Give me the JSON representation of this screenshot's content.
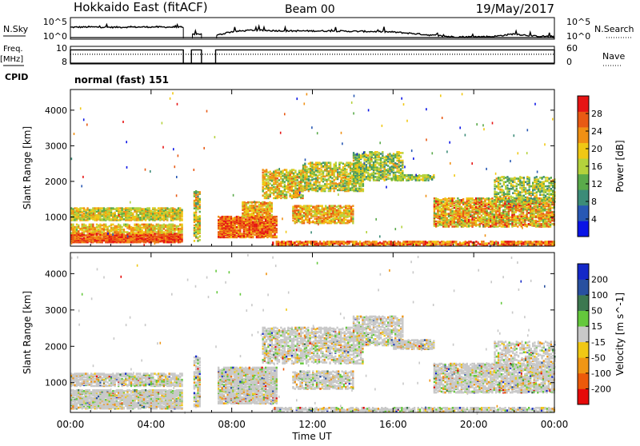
{
  "header": {
    "station": "Hokkaido East (fitACF)",
    "beam": "Beam 00",
    "date": "19/May/2017"
  },
  "side_labels": {
    "nsky": "N.Sky",
    "freq_line1": "Freq.",
    "freq_line2": "[MHz]",
    "cpid": "CPID",
    "nsearch": "N.Search",
    "nave": "Nave"
  },
  "cpid_text": "normal (fast) 151",
  "time_axis": {
    "label": "Time UT",
    "ticks": [
      "00:00",
      "04:00",
      "08:00",
      "12:00",
      "16:00",
      "20:00",
      "00:00"
    ]
  },
  "colors": {
    "power": [
      "#0a14e6",
      "#2858b4",
      "#3c8c78",
      "#5aaa4a",
      "#b4d23c",
      "#f0c814",
      "#f09014",
      "#e85a14",
      "#e61414"
    ],
    "velocity": [
      "#1428c8",
      "#2850a0",
      "#3c7850",
      "#64c83c",
      "#c8c8c8",
      "#f0c814",
      "#f09614",
      "#ec5a0a",
      "#e60a0a"
    ],
    "line": "#000000"
  },
  "chart_data": [
    {
      "type": "line",
      "title": "N.Sky / N.Search",
      "ylabel_left": "N.Sky",
      "ylabel_right": "N.Search",
      "y_ticks_left": [
        "10^5",
        "10^0"
      ],
      "y_ticks_right": [
        "10^5",
        "10^0"
      ],
      "x_hours_range": [
        0,
        24
      ],
      "data_gaps_hours": [
        [
          5.6,
          6.0
        ],
        [
          6.5,
          7.2
        ]
      ],
      "series": [
        {
          "kind": "nsky",
          "x_hours": [
            0.0,
            1.0,
            2.0,
            3.0,
            4.0,
            5.0,
            5.55,
            6.05,
            6.45,
            7.25,
            8.0,
            9.0,
            10.0,
            11.0,
            12.0,
            13.0,
            14.0,
            15.0,
            16.0,
            17.0,
            18.0,
            19.0,
            20.0,
            21.0,
            22.0,
            23.0,
            24.0
          ],
          "level": [
            0.56,
            0.58,
            0.56,
            0.57,
            0.58,
            0.57,
            0.56,
            0.18,
            0.2,
            0.12,
            0.32,
            0.4,
            0.38,
            0.36,
            0.36,
            0.36,
            0.34,
            0.33,
            0.3,
            0.22,
            0.12,
            0.04,
            0.04,
            0.06,
            0.2,
            0.08,
            0.06
          ]
        }
      ]
    },
    {
      "type": "line",
      "title": "Freq. / Nave",
      "ylabel_left": "Freq. [MHz]",
      "ylabel_right": "Nave",
      "y_ticks_left": [
        "10",
        "8"
      ],
      "y_ticks_right": [
        "60",
        "0"
      ],
      "x_hours_range": [
        0,
        24
      ],
      "data_gaps_hours": [
        [
          5.6,
          6.0
        ],
        [
          6.5,
          7.2
        ]
      ],
      "series": [
        {
          "name": "Freq.",
          "style": "solid",
          "level": 0.8
        },
        {
          "name": "Nave",
          "style": "dotted",
          "level": 0.55
        }
      ]
    },
    {
      "type": "heatmap",
      "panel": "power",
      "ylabel": "Slant Range [km]",
      "y_ticks": [
        1000,
        2000,
        3000,
        4000
      ],
      "ylim": [
        180,
        4580
      ],
      "colorbar_label": "Power [dB]",
      "colorbar_ticks": [
        4,
        8,
        12,
        16,
        20,
        24,
        28
      ],
      "colorbar_range": [
        0,
        32
      ],
      "regions": [
        {
          "t0": 0.0,
          "t1": 5.5,
          "r0": 260,
          "r1": 520,
          "v0": 22,
          "v1": 32,
          "d": 0.85
        },
        {
          "t0": 0.0,
          "t1": 5.5,
          "r0": 520,
          "r1": 780,
          "v0": 14,
          "v1": 26,
          "d": 0.6
        },
        {
          "t0": 0.0,
          "t1": 5.5,
          "r0": 880,
          "r1": 1240,
          "v0": 12,
          "v1": 24,
          "d": 0.7
        },
        {
          "t0": 6.1,
          "t1": 6.4,
          "r0": 300,
          "r1": 1700,
          "v0": 10,
          "v1": 26,
          "d": 0.55
        },
        {
          "t0": 7.3,
          "t1": 10.2,
          "r0": 400,
          "r1": 1000,
          "v0": 20,
          "v1": 32,
          "d": 0.8
        },
        {
          "t0": 8.5,
          "t1": 10.0,
          "r0": 1000,
          "r1": 1400,
          "v0": 16,
          "v1": 28,
          "d": 0.6
        },
        {
          "t0": 9.5,
          "t1": 11.5,
          "r0": 1500,
          "r1": 2300,
          "v0": 12,
          "v1": 26,
          "d": 0.55
        },
        {
          "t0": 11.5,
          "t1": 14.5,
          "r0": 1700,
          "r1": 2500,
          "v0": 10,
          "v1": 24,
          "d": 0.5
        },
        {
          "t0": 11.0,
          "t1": 14.0,
          "r0": 800,
          "r1": 1300,
          "v0": 14,
          "v1": 28,
          "d": 0.6
        },
        {
          "t0": 14.0,
          "t1": 16.5,
          "r0": 2000,
          "r1": 2800,
          "v0": 8,
          "v1": 22,
          "d": 0.5
        },
        {
          "t0": 16.0,
          "t1": 18.0,
          "r0": 2000,
          "r1": 2150,
          "v0": 10,
          "v1": 20,
          "d": 0.6
        },
        {
          "t0": 10.0,
          "t1": 24.0,
          "r0": 180,
          "r1": 300,
          "v0": 18,
          "v1": 32,
          "d": 0.7
        },
        {
          "t0": 18.0,
          "t1": 24.0,
          "r0": 700,
          "r1": 1500,
          "v0": 12,
          "v1": 30,
          "d": 0.6
        },
        {
          "t0": 21.0,
          "t1": 24.0,
          "r0": 1400,
          "r1": 2100,
          "v0": 8,
          "v1": 22,
          "d": 0.4
        }
      ]
    },
    {
      "type": "heatmap",
      "panel": "velocity",
      "ylabel": "Slant Range [km]",
      "y_ticks": [
        1000,
        2000,
        3000,
        4000
      ],
      "ylim": [
        180,
        4580
      ],
      "colorbar_label": "Velocity [m s^-1]",
      "colorbar_ticks": [
        200,
        100,
        50,
        15,
        -15,
        -50,
        -100,
        -200
      ],
      "regions": [
        {
          "t0": 0.0,
          "t1": 5.5,
          "r0": 260,
          "r1": 780,
          "bin": 4,
          "d": 0.75
        },
        {
          "t0": 0.0,
          "t1": 5.5,
          "r0": 880,
          "r1": 1240,
          "bin": 4,
          "d": 0.65
        },
        {
          "t0": 6.1,
          "t1": 6.4,
          "r0": 300,
          "r1": 1700,
          "bin": 4,
          "d": 0.55
        },
        {
          "t0": 7.3,
          "t1": 10.2,
          "r0": 400,
          "r1": 1400,
          "bin": 4,
          "d": 0.75
        },
        {
          "t0": 9.5,
          "t1": 14.5,
          "r0": 1500,
          "r1": 2500,
          "bin": 4,
          "d": 0.5
        },
        {
          "t0": 11.0,
          "t1": 14.0,
          "r0": 800,
          "r1": 1300,
          "bin": 4,
          "d": 0.55
        },
        {
          "t0": 14.0,
          "t1": 16.5,
          "r0": 2000,
          "r1": 2800,
          "bin": 4,
          "d": 0.5
        },
        {
          "t0": 16.0,
          "t1": 18.0,
          "r0": 1900,
          "r1": 2150,
          "bin": 3,
          "d": 0.7
        },
        {
          "t0": 10.0,
          "t1": 24.0,
          "r0": 180,
          "r1": 300,
          "bin": 3,
          "d": 0.6
        },
        {
          "t0": 18.0,
          "t1": 24.0,
          "r0": 700,
          "r1": 1500,
          "bin": 4,
          "d": 0.6
        },
        {
          "t0": 21.0,
          "t1": 24.0,
          "r0": 1400,
          "r1": 2100,
          "bin": 4,
          "d": 0.4
        }
      ]
    }
  ]
}
